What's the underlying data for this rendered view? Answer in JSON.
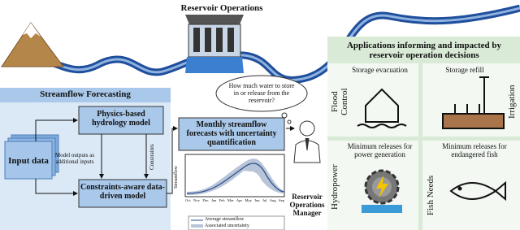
{
  "reservoir_label": "Reservoir Operations",
  "forecasting": {
    "title": "Streamflow Forecasting",
    "input": "Input data",
    "physics": "Physics-based hydrology model",
    "link_label": "Model outputs as additional inputs",
    "constraints_label": "Constraints",
    "data_driven": "Constraints-aware data-driven model"
  },
  "monthly": "Monthly streamflow forecasts with uncertainty quantification",
  "mini_chart": {
    "y_label": "Streamflow",
    "months": [
      "Oct",
      "Nov",
      "Dec",
      "Jan",
      "Feb",
      "Mar",
      "Apr",
      "May",
      "Jun",
      "Jul",
      "Aug",
      "Sep"
    ],
    "legend": [
      "Average streamflow",
      "Associated uncertainty"
    ]
  },
  "question": "How much water to store in or release from the reservoir?",
  "manager": "Reservoir Operations Manager",
  "applications": {
    "title": "Applications informing and impacted by reservoir operation decisions",
    "quadrants": [
      {
        "label": "Flood Control",
        "caption": "Storage evacuation"
      },
      {
        "label": "Irrigation",
        "caption": "Storage refill"
      },
      {
        "label": "Hydropower",
        "caption": "Minimum releases for power generation"
      },
      {
        "label": "Fish Needs",
        "caption": "Minimum releases for endangered fish"
      }
    ]
  }
}
